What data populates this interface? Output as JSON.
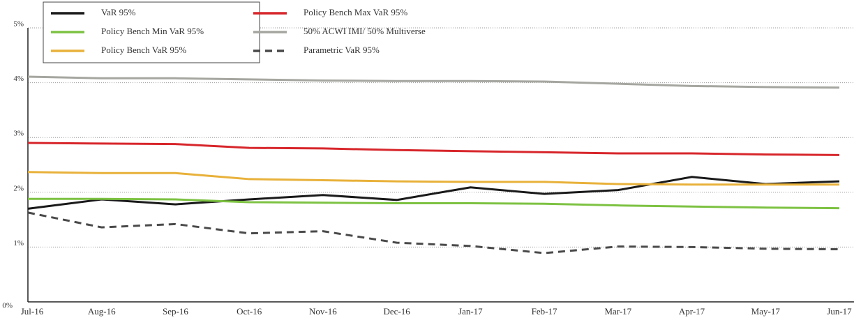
{
  "chart_data": {
    "type": "line",
    "categories": [
      "Jul-16",
      "Aug-16",
      "Sep-16",
      "Oct-16",
      "Nov-16",
      "Dec-16",
      "Jan-17",
      "Feb-17",
      "Mar-17",
      "Apr-17",
      "May-17",
      "Jun-17"
    ],
    "series": [
      {
        "name": "VaR 95%",
        "color": "#1a1a1a",
        "style": "solid",
        "values": [
          1.7,
          1.87,
          1.78,
          1.87,
          1.95,
          1.86,
          2.09,
          1.97,
          2.04,
          2.28,
          2.15,
          2.2
        ]
      },
      {
        "name": "Policy Bench Min VaR 95%",
        "color": "#7dc242",
        "style": "solid",
        "values": [
          1.88,
          1.88,
          1.87,
          1.82,
          1.81,
          1.8,
          1.8,
          1.79,
          1.76,
          1.74,
          1.72,
          1.71
        ]
      },
      {
        "name": "Policy Bench VaR 95%",
        "color": "#e8b13a",
        "style": "solid",
        "values": [
          2.37,
          2.35,
          2.35,
          2.24,
          2.22,
          2.2,
          2.19,
          2.19,
          2.15,
          2.14,
          2.14,
          2.14
        ]
      },
      {
        "name": "Policy Bench Max VaR 95%",
        "color": "#d7262b",
        "style": "solid",
        "values": [
          2.9,
          2.89,
          2.88,
          2.81,
          2.8,
          2.77,
          2.75,
          2.73,
          2.71,
          2.71,
          2.69,
          2.68
        ]
      },
      {
        "name": "50% ACWI IMI/ 50% Multiverse",
        "color": "#a6a6a0",
        "style": "solid",
        "values": [
          4.11,
          4.08,
          4.08,
          4.06,
          4.04,
          4.03,
          4.03,
          4.02,
          3.98,
          3.94,
          3.92,
          3.91
        ]
      },
      {
        "name": "Parametric VaR 95%",
        "color": "#4a4a4a",
        "style": "dashed",
        "values": [
          1.63,
          1.36,
          1.42,
          1.25,
          1.29,
          1.08,
          1.02,
          0.89,
          1.01,
          1.0,
          0.97,
          0.96
        ]
      }
    ],
    "ylim": [
      0,
      5
    ],
    "yticks": [
      {
        "value": 0,
        "label": "0%"
      },
      {
        "value": 1,
        "label": "1%"
      },
      {
        "value": 2,
        "label": "2%"
      },
      {
        "value": 3,
        "label": "3%"
      },
      {
        "value": 4,
        "label": "4%"
      },
      {
        "value": 5,
        "label": "5%"
      }
    ],
    "grid": true,
    "legend": "top-left"
  }
}
